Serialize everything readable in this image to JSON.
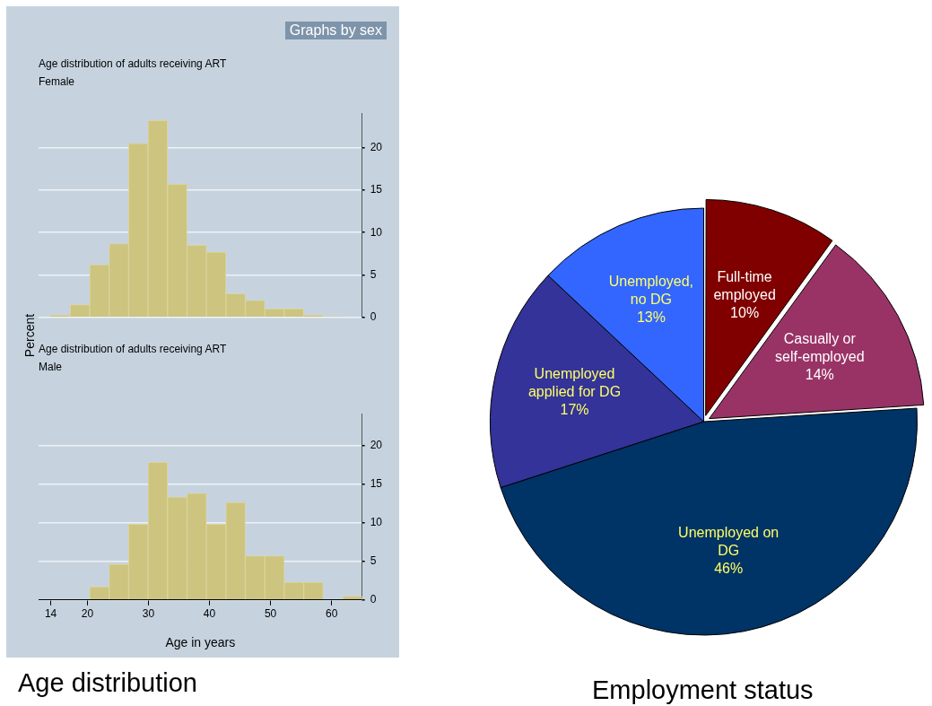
{
  "chart_data": [
    {
      "type": "histogram",
      "title": "Age distribution of adults receiving ART",
      "subtitle": "Female",
      "ylabel": "Percent",
      "annotations": [
        "Graphs by sex"
      ],
      "bins": [
        14,
        17.1875,
        20.375,
        23.5625,
        26.75,
        29.9375,
        33.125,
        36.3125,
        39.5,
        42.6875,
        45.875,
        49.0625,
        52.25,
        55.4375,
        58.625,
        61.8125,
        65
      ],
      "values": [
        0.3,
        1.5,
        6.2,
        8.7,
        20.5,
        23.2,
        15.7,
        8.5,
        7.7,
        2.8,
        2.0,
        1.0,
        1.0,
        0.3,
        0.1,
        0
      ],
      "color": "#ccc47f",
      "xlim": [
        12,
        65
      ],
      "ylim": [
        0,
        24
      ],
      "yticks": [
        0,
        5,
        10,
        15,
        20
      ],
      "grid": "y",
      "tick_labels": "y",
      "legend": false
    },
    {
      "type": "histogram",
      "title": "Age distribution of adults receiving ART",
      "subtitle": "Male",
      "xlabel": "Age in years",
      "annotations": [
        "Age distribution"
      ],
      "bins": [
        14,
        17.1875,
        20.375,
        23.5625,
        26.75,
        29.9375,
        33.125,
        36.3125,
        39.5,
        42.6875,
        45.875,
        49.0625,
        52.25,
        55.4375,
        58.625,
        61.8125,
        65
      ],
      "values": [
        0,
        0,
        1.7,
        4.6,
        9.8,
        17.8,
        13.3,
        13.8,
        9.8,
        12.6,
        5.7,
        5.7,
        2.3,
        2.3,
        0,
        0.5
      ],
      "color": "#ccc47f",
      "xlim": [
        12,
        65
      ],
      "ylim": [
        0,
        24
      ],
      "xticks": [
        14,
        20,
        30,
        40,
        50,
        60
      ],
      "yticks": [
        0,
        5,
        10,
        15,
        20
      ],
      "grid": "y",
      "legend": false
    },
    {
      "type": "pie",
      "title": "Employment status",
      "categories": [
        "Full-time employed",
        "Casually or self-employed",
        "Unemployed on DG",
        "Unemployed applied for DG",
        "Unemployed, no DG"
      ],
      "values": [
        10,
        14,
        46,
        17,
        13
      ],
      "colors": [
        "#800000",
        "#993366",
        "#003366",
        "#333399",
        "#3366ff"
      ],
      "value_labels": [
        "10%",
        "14%",
        "46%",
        "17%",
        "13%"
      ],
      "legend": false
    }
  ]
}
